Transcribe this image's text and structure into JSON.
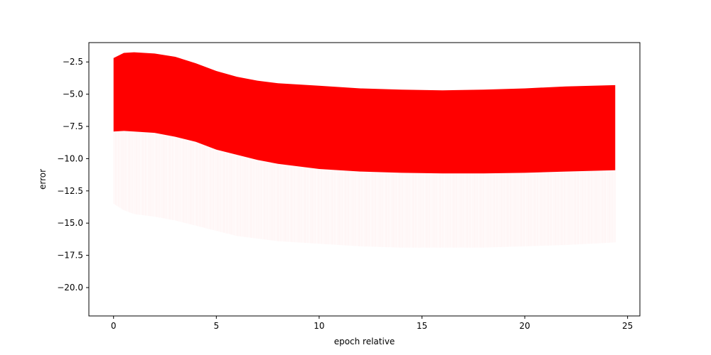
{
  "chart_data": {
    "type": "scatter",
    "title": "",
    "xlabel": "epoch relative",
    "ylabel": "error",
    "xlim": [
      -1.2,
      25.6
    ],
    "ylim": [
      -22.2,
      -1.0
    ],
    "x_ticks": [
      0,
      5,
      10,
      15,
      20,
      25
    ],
    "y_ticks": [
      -2.5,
      -5.0,
      -7.5,
      -10.0,
      -12.5,
      -15.0,
      -17.5,
      -20.0
    ],
    "x_tick_labels": [
      "0",
      "5",
      "10",
      "15",
      "20",
      "25"
    ],
    "y_tick_labels": [
      "−2.5",
      "−5.0",
      "−7.5",
      "−10.0",
      "−12.5",
      "−15.0",
      "−17.5",
      "−20.0"
    ],
    "grid": false,
    "legend": "none",
    "color": "#ff0000",
    "series": [
      {
        "x": [
          0.0,
          0.5,
          1.0,
          2.0,
          3.0,
          4.0,
          5.0,
          6.0,
          7.0,
          8.0,
          10.0,
          12.0,
          14.0,
          16.0,
          18.0,
          20.0,
          22.0,
          24.4
        ],
        "upper": [
          -2.2,
          -1.8,
          -1.75,
          -1.85,
          -2.1,
          -2.6,
          -3.2,
          -3.65,
          -3.95,
          -4.15,
          -4.35,
          -4.55,
          -4.65,
          -4.7,
          -4.65,
          -4.55,
          -4.4,
          -4.3
        ],
        "dense_lower": [
          -7.9,
          -7.85,
          -7.9,
          -8.0,
          -8.3,
          -8.7,
          -9.3,
          -9.7,
          -10.1,
          -10.4,
          -10.8,
          -11.0,
          -11.1,
          -11.15,
          -11.15,
          -11.1,
          -11.0,
          -10.9
        ],
        "sparse_lower": [
          -13.5,
          -14.0,
          -14.3,
          -14.5,
          -14.8,
          -15.2,
          -15.6,
          -16.0,
          -16.2,
          -16.4,
          -16.6,
          -16.8,
          -16.9,
          -16.9,
          -16.9,
          -16.8,
          -16.7,
          -16.5
        ]
      }
    ]
  }
}
